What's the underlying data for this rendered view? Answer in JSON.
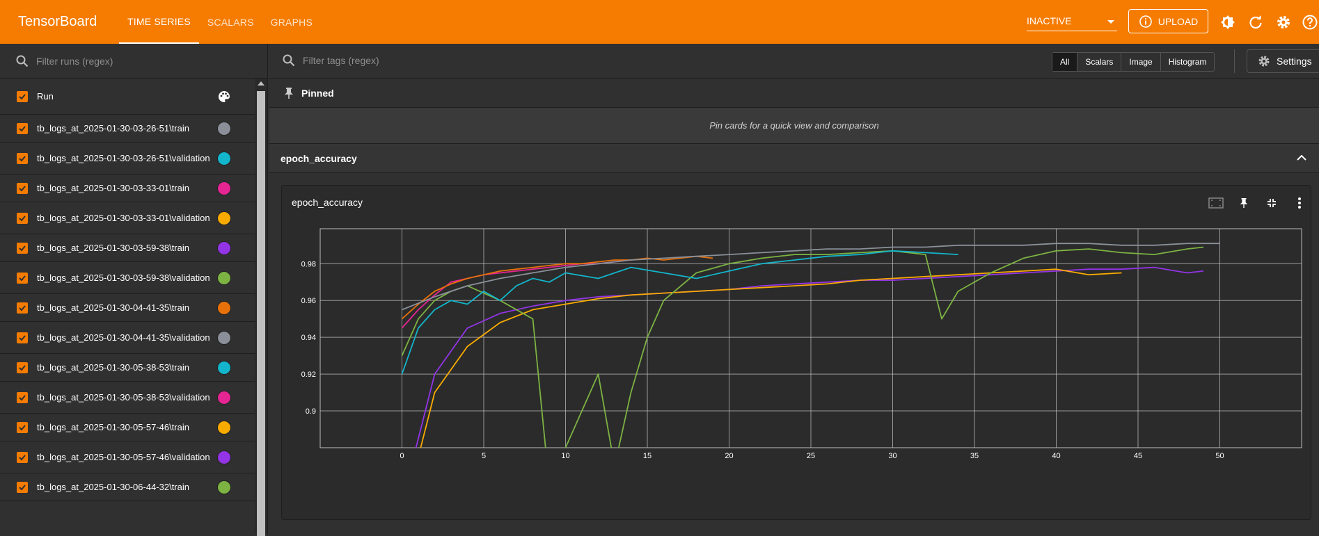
{
  "app": {
    "title": "TensorBoard"
  },
  "nav": {
    "tabs": [
      {
        "label": "TIME SERIES",
        "active": true
      },
      {
        "label": "SCALARS",
        "active": false
      },
      {
        "label": "GRAPHS",
        "active": false
      }
    ]
  },
  "header": {
    "status_select": "INACTIVE",
    "upload_label": "UPLOAD",
    "icons": [
      "theme-icon",
      "refresh-icon",
      "gear-icon",
      "help-icon"
    ]
  },
  "runs": {
    "filter_placeholder": "Filter runs (regex)",
    "header_label": "Run",
    "items": [
      {
        "label": "tb_logs_at_2025-01-30-03-26-51\\train",
        "color": "#8a8f99"
      },
      {
        "label": "tb_logs_at_2025-01-30-03-26-51\\validation",
        "color": "#12b5cb"
      },
      {
        "label": "tb_logs_at_2025-01-30-03-33-01\\train",
        "color": "#e52592"
      },
      {
        "label": "tb_logs_at_2025-01-30-03-33-01\\validation",
        "color": "#f9ab00"
      },
      {
        "label": "tb_logs_at_2025-01-30-03-59-38\\train",
        "color": "#9334e6"
      },
      {
        "label": "tb_logs_at_2025-01-30-03-59-38\\validation",
        "color": "#7cb342"
      },
      {
        "label": "tb_logs_at_2025-01-30-04-41-35\\train",
        "color": "#e8710a"
      },
      {
        "label": "tb_logs_at_2025-01-30-04-41-35\\validation",
        "color": "#8a8f99"
      },
      {
        "label": "tb_logs_at_2025-01-30-05-38-53\\train",
        "color": "#12b5cb"
      },
      {
        "label": "tb_logs_at_2025-01-30-05-38-53\\validation",
        "color": "#e52592"
      },
      {
        "label": "tb_logs_at_2025-01-30-05-57-46\\train",
        "color": "#f9ab00"
      },
      {
        "label": "tb_logs_at_2025-01-30-05-57-46\\validation",
        "color": "#9334e6"
      },
      {
        "label": "tb_logs_at_2025-01-30-06-44-32\\train",
        "color": "#7cb342"
      }
    ]
  },
  "main": {
    "tag_filter_placeholder": "Filter tags (regex)",
    "type_filters": [
      "All",
      "Scalars",
      "Image",
      "Histogram"
    ],
    "settings_label": "Settings",
    "pinned_title": "Pinned",
    "pinned_empty": "Pin cards for a quick view and comparison",
    "group_title": "epoch_accuracy",
    "card_title": "epoch_accuracy"
  },
  "chart_data": {
    "type": "line",
    "title": "epoch_accuracy",
    "xlabel": "",
    "ylabel": "",
    "xlim": [
      -5,
      55
    ],
    "ylim": [
      0.88,
      0.999
    ],
    "x_ticks": [
      0,
      5,
      10,
      15,
      20,
      25,
      30,
      35,
      40,
      45,
      50
    ],
    "y_ticks": [
      0.9,
      0.92,
      0.94,
      0.96,
      0.98
    ],
    "grid": true,
    "series": [
      {
        "color": "#9334e6",
        "x": [
          0,
          2,
          4,
          6,
          8,
          10,
          12,
          14,
          16,
          18,
          20,
          22,
          24,
          26,
          28,
          30,
          32,
          34,
          36,
          38,
          40,
          42,
          44,
          46,
          48,
          49
        ],
        "values": [
          0.85,
          0.92,
          0.945,
          0.953,
          0.957,
          0.96,
          0.962,
          0.963,
          0.964,
          0.965,
          0.966,
          0.968,
          0.969,
          0.97,
          0.971,
          0.971,
          0.972,
          0.973,
          0.974,
          0.975,
          0.976,
          0.977,
          0.977,
          0.978,
          0.975,
          0.976
        ]
      },
      {
        "color": "#f9ab00",
        "x": [
          0,
          2,
          4,
          6,
          8,
          10,
          12,
          14,
          16,
          18,
          20,
          22,
          24,
          26,
          28,
          30,
          32,
          34,
          36,
          38,
          40,
          42,
          44
        ],
        "values": [
          0.84,
          0.91,
          0.935,
          0.948,
          0.955,
          0.958,
          0.961,
          0.963,
          0.964,
          0.965,
          0.966,
          0.967,
          0.968,
          0.969,
          0.971,
          0.972,
          0.973,
          0.974,
          0.975,
          0.976,
          0.977,
          0.974,
          0.975
        ]
      },
      {
        "color": "#7cb342",
        "x": [
          0,
          1,
          2,
          3,
          4,
          6,
          8,
          9,
          10,
          12,
          13,
          14,
          15,
          16,
          18,
          20,
          22,
          24,
          26,
          28,
          30,
          32,
          33,
          34,
          36,
          38,
          40,
          42,
          44,
          46,
          48,
          49
        ],
        "values": [
          0.93,
          0.95,
          0.96,
          0.965,
          0.968,
          0.96,
          0.95,
          0.86,
          0.88,
          0.92,
          0.87,
          0.91,
          0.94,
          0.96,
          0.975,
          0.98,
          0.983,
          0.985,
          0.985,
          0.986,
          0.987,
          0.985,
          0.95,
          0.965,
          0.975,
          0.983,
          0.987,
          0.988,
          0.986,
          0.985,
          0.988,
          0.989
        ]
      },
      {
        "color": "#12b5cb",
        "x": [
          0,
          1,
          2,
          3,
          4,
          5,
          6,
          7,
          8,
          9,
          10,
          12,
          14,
          16,
          18,
          20,
          22,
          24,
          26,
          28,
          30,
          32,
          34
        ],
        "values": [
          0.92,
          0.945,
          0.955,
          0.96,
          0.958,
          0.965,
          0.96,
          0.968,
          0.972,
          0.97,
          0.975,
          0.972,
          0.978,
          0.975,
          0.972,
          0.976,
          0.98,
          0.982,
          0.984,
          0.985,
          0.987,
          0.986,
          0.985
        ]
      },
      {
        "color": "#e52592",
        "x": [
          0,
          1,
          2,
          3,
          4,
          5,
          6,
          7,
          8,
          9,
          10,
          11,
          12,
          13,
          14
        ],
        "values": [
          0.945,
          0.955,
          0.963,
          0.97,
          0.972,
          0.974,
          0.975,
          0.976,
          0.977,
          0.978,
          0.979,
          0.98,
          0.98,
          0.981,
          0.982
        ]
      },
      {
        "color": "#e8710a",
        "x": [
          0,
          1,
          2,
          3,
          4,
          5,
          6,
          7,
          8,
          9,
          10,
          11,
          12,
          13,
          14,
          15,
          16,
          17,
          18,
          19
        ],
        "values": [
          0.95,
          0.958,
          0.965,
          0.969,
          0.972,
          0.974,
          0.976,
          0.977,
          0.978,
          0.979,
          0.98,
          0.98,
          0.981,
          0.982,
          0.982,
          0.983,
          0.982,
          0.983,
          0.984,
          0.983
        ]
      },
      {
        "color": "#8a8f99",
        "x": [
          0,
          2,
          4,
          6,
          8,
          10,
          12,
          14,
          16,
          18,
          20,
          22,
          24,
          26,
          28,
          30,
          32,
          34,
          36,
          38,
          40,
          42,
          44,
          46,
          48,
          50
        ],
        "values": [
          0.955,
          0.962,
          0.968,
          0.972,
          0.975,
          0.978,
          0.98,
          0.982,
          0.983,
          0.984,
          0.985,
          0.986,
          0.987,
          0.988,
          0.988,
          0.989,
          0.989,
          0.99,
          0.99,
          0.99,
          0.991,
          0.991,
          0.99,
          0.99,
          0.991,
          0.991
        ]
      }
    ]
  }
}
